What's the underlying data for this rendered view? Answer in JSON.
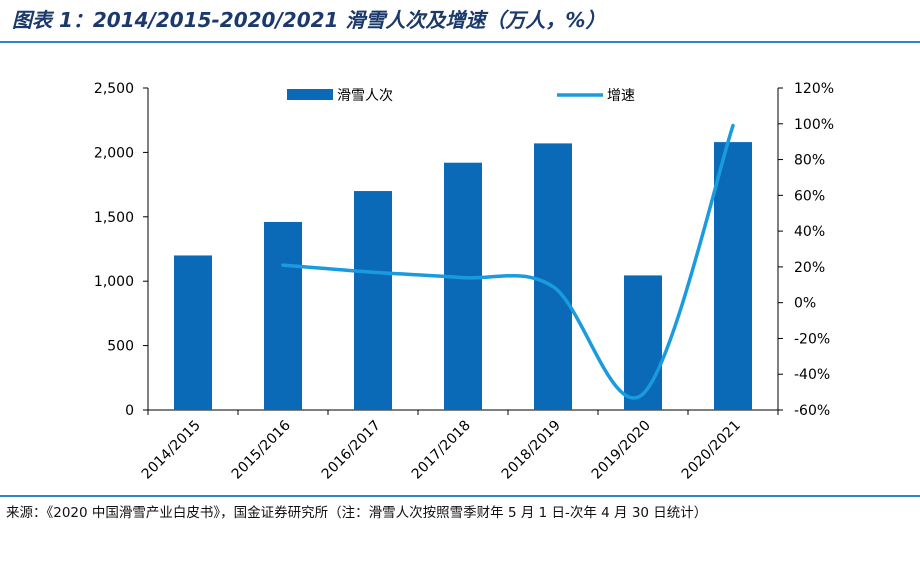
{
  "header": {
    "title": "图表 1：2014/2015-2020/2021 滑雪人次及增速（万人，%）"
  },
  "footer": {
    "source": "来源：《2020 中国滑雪产业白皮书》，国金证券研究所（注：滑雪人次按照雪季财年 5 月 1 日-次年 4 月 30 日统计）"
  },
  "colors": {
    "bar": "#0a6ab8",
    "line": "#1a9be0",
    "rule": "#2e86c8",
    "title": "#1b3a6b"
  },
  "chart_data": {
    "type": "bar",
    "categories": [
      "2014/2015",
      "2015/2016",
      "2016/2017",
      "2017/2018",
      "2018/2019",
      "2019/2020",
      "2020/2021"
    ],
    "series": [
      {
        "name": "滑雪人次",
        "kind": "bar",
        "axis": "left",
        "values": [
          1200,
          1460,
          1700,
          1920,
          2070,
          1045,
          2080
        ]
      },
      {
        "name": "增速",
        "kind": "line",
        "axis": "right",
        "values": [
          null,
          21,
          17,
          14,
          9,
          -51,
          99
        ]
      }
    ],
    "y_left": {
      "ylim": [
        0,
        2500
      ],
      "ticks": [
        "0",
        "500",
        "1,000",
        "1,500",
        "2,000",
        "2,500"
      ],
      "tick_values": [
        0,
        500,
        1000,
        1500,
        2000,
        2500
      ]
    },
    "y_right": {
      "ylim": [
        -60,
        120
      ],
      "ticks": [
        "-60%",
        "-40%",
        "-20%",
        "0%",
        "20%",
        "40%",
        "60%",
        "80%",
        "100%",
        "120%"
      ],
      "tick_values": [
        -60,
        -40,
        -20,
        0,
        20,
        40,
        60,
        80,
        100,
        120
      ]
    },
    "legend": {
      "placement": "top",
      "labels": [
        "滑雪人次",
        "增速"
      ]
    },
    "grid": false
  }
}
